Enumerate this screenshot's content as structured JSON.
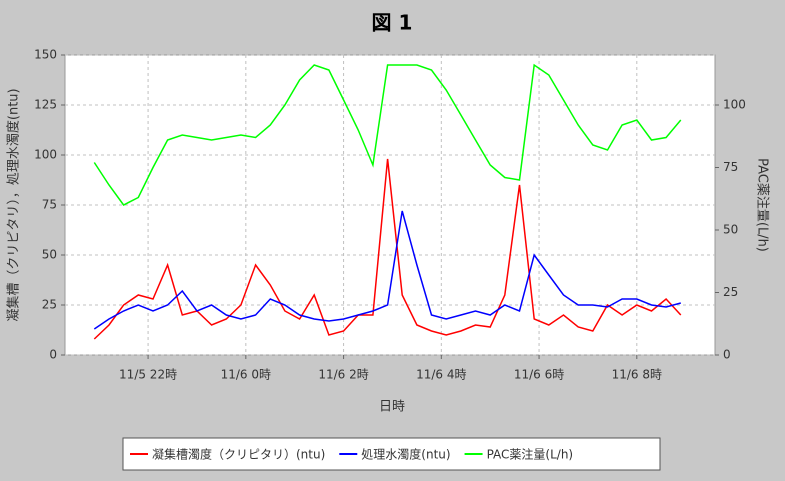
{
  "chart_data": {
    "type": "line",
    "title": "図 1",
    "x_label": "日時",
    "y_label": "凝集槽（クリピタリ），処理水濁度(ntu)",
    "y2_label": "PAC薬注量(L/h)",
    "x": [
      20.9,
      21.2,
      21.5,
      21.8,
      22.1,
      22.4,
      22.7,
      23.0,
      23.3,
      23.6,
      23.9,
      24.2,
      24.5,
      24.8,
      25.1,
      25.4,
      25.7,
      26.0,
      26.3,
      26.6,
      26.9,
      27.2,
      27.5,
      27.8,
      28.1,
      28.4,
      28.7,
      29.0,
      29.3,
      29.6,
      29.9,
      30.2,
      30.5,
      30.8,
      31.1,
      31.4,
      31.7,
      32.0,
      32.3,
      32.6,
      32.9
    ],
    "xlim": [
      20.3,
      33.6
    ],
    "xticks": [
      {
        "value": 22,
        "label": "11/5 22時"
      },
      {
        "value": 24,
        "label": "11/6 0時"
      },
      {
        "value": 26,
        "label": "11/6 2時"
      },
      {
        "value": 28,
        "label": "11/6 4時"
      },
      {
        "value": 30,
        "label": "11/6 6時"
      },
      {
        "value": 32,
        "label": "11/6 8時"
      }
    ],
    "ylim": [
      0,
      150
    ],
    "yticks": [
      0,
      25,
      50,
      75,
      100,
      125,
      150
    ],
    "y2lim": [
      0,
      120
    ],
    "y2ticks": [
      0,
      25,
      50,
      75,
      100
    ],
    "grid": true,
    "series": [
      {
        "name": "凝集槽濁度（クリピタリ）(ntu)",
        "color": "#ff0000",
        "values": [
          8,
          15,
          25,
          30,
          28,
          45,
          20,
          22,
          15,
          18,
          25,
          45,
          35,
          22,
          18,
          30,
          10,
          12,
          20,
          20,
          98,
          30,
          15,
          12,
          10,
          12,
          15,
          14,
          30,
          85,
          18,
          15,
          20,
          14,
          12,
          25,
          20,
          25,
          22,
          28,
          20
        ]
      },
      {
        "name": "処理水濁度(ntu)",
        "color": "#0000ff",
        "values": [
          13,
          18,
          22,
          25,
          22,
          25,
          32,
          22,
          25,
          20,
          18,
          20,
          28,
          25,
          20,
          18,
          17,
          18,
          20,
          22,
          25,
          72,
          45,
          20,
          18,
          20,
          22,
          20,
          25,
          22,
          50,
          40,
          30,
          25,
          25,
          24,
          28,
          28,
          25,
          24,
          26
        ]
      },
      {
        "name": "PAC薬注量(L/h)",
        "color": "#00ff00",
        "axis": "y2",
        "values": [
          77,
          68,
          60,
          63,
          75,
          86,
          88,
          87,
          86,
          87,
          88,
          87,
          92,
          100,
          110,
          116,
          114,
          102,
          90,
          76,
          116,
          116,
          116,
          114,
          106,
          96,
          86,
          76,
          71,
          70,
          116,
          112,
          102,
          92,
          84,
          82,
          92,
          94,
          86,
          87,
          94
        ]
      }
    ]
  }
}
